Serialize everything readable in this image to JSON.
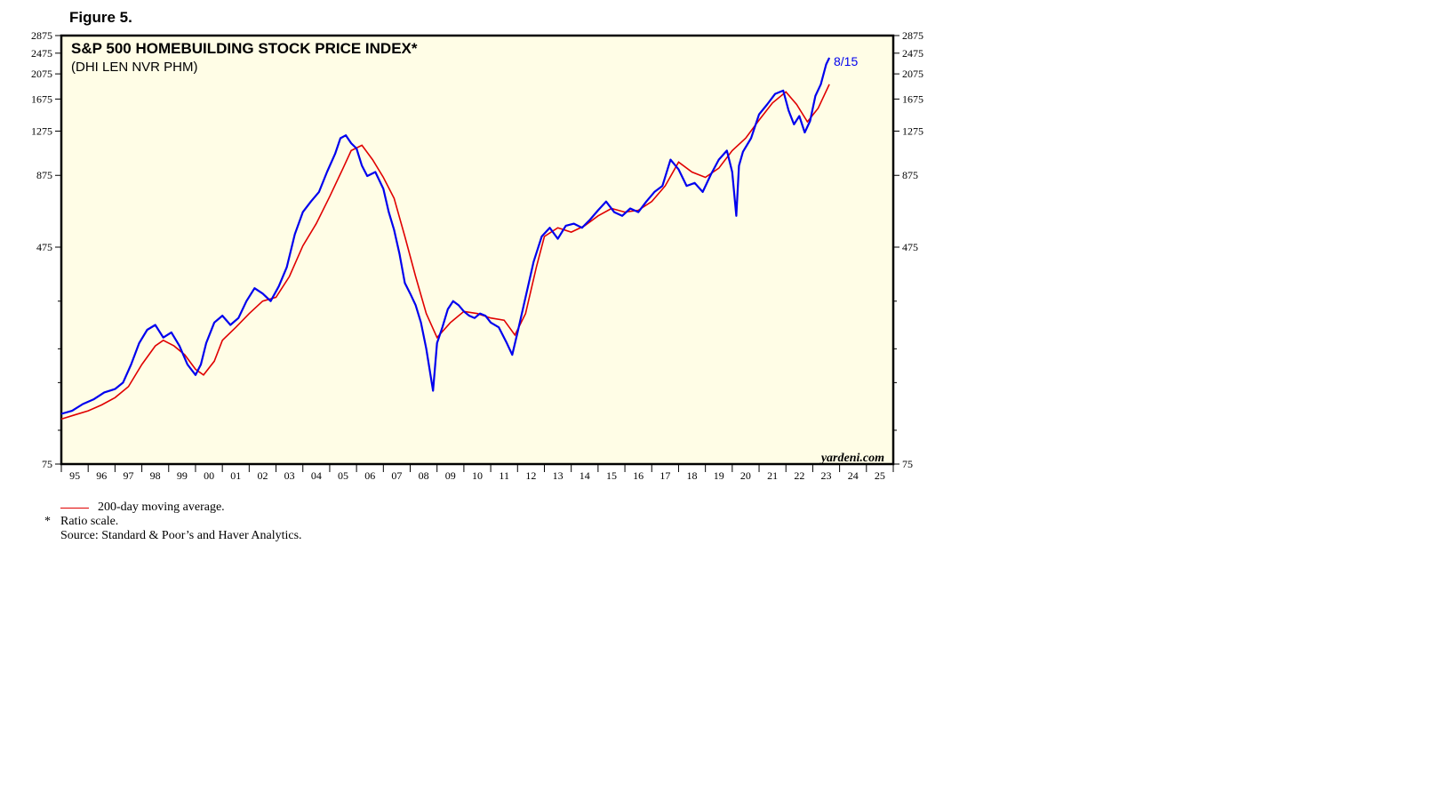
{
  "figure": {
    "label": "Figure 5."
  },
  "colors": {
    "price": "#0000ee",
    "ma": "#e00000",
    "plot_bg": "#fffde6",
    "frame": "#000000"
  },
  "notes": {
    "ma_legend": "200-day moving average.",
    "ratio_mark": "*",
    "ratio": "Ratio scale.",
    "source": "Source: Standard & Poor’s and Haver Analytics."
  },
  "chart_data": {
    "type": "line",
    "title": "S&P 500 HOMEBUILDING STOCK PRICE INDEX*",
    "subtitle": "(DHI LEN NVR PHM)",
    "credit": "yardeni.com",
    "end_label": "8/15",
    "y_scale": "log",
    "ylim": [
      75,
      2875
    ],
    "y_ticks": [
      75,
      475,
      875,
      1275,
      1675,
      2075,
      2475,
      2875
    ],
    "xlim": [
      1995,
      2026
    ],
    "x_tick_labels": [
      "95",
      "96",
      "97",
      "98",
      "99",
      "00",
      "01",
      "02",
      "03",
      "04",
      "05",
      "06",
      "07",
      "08",
      "09",
      "10",
      "11",
      "12",
      "13",
      "14",
      "15",
      "16",
      "17",
      "18",
      "19",
      "20",
      "21",
      "22",
      "23",
      "24",
      "25"
    ],
    "grid": false,
    "series": [
      {
        "name": "",
        "role": "price",
        "x": [
          1995.0,
          1995.4,
          1995.8,
          1996.2,
          1996.6,
          1997.0,
          1997.3,
          1997.6,
          1997.9,
          1998.2,
          1998.5,
          1998.8,
          1999.1,
          1999.4,
          1999.7,
          2000.0,
          2000.2,
          2000.4,
          2000.7,
          2001.0,
          2001.3,
          2001.6,
          2001.9,
          2002.2,
          2002.5,
          2002.8,
          2003.1,
          2003.4,
          2003.7,
          2004.0,
          2004.3,
          2004.6,
          2004.9,
          2005.2,
          2005.4,
          2005.6,
          2005.8,
          2006.0,
          2006.2,
          2006.4,
          2006.7,
          2007.0,
          2007.2,
          2007.4,
          2007.6,
          2007.8,
          2008.0,
          2008.2,
          2008.4,
          2008.6,
          2008.85,
          2009.0,
          2009.2,
          2009.4,
          2009.6,
          2009.8,
          2010.0,
          2010.2,
          2010.4,
          2010.6,
          2010.8,
          2011.0,
          2011.3,
          2011.6,
          2011.8,
          2012.0,
          2012.3,
          2012.6,
          2012.9,
          2013.2,
          2013.5,
          2013.8,
          2014.1,
          2014.4,
          2014.7,
          2015.0,
          2015.3,
          2015.6,
          2015.9,
          2016.2,
          2016.5,
          2016.8,
          2017.1,
          2017.4,
          2017.7,
          2018.0,
          2018.3,
          2018.6,
          2018.9,
          2019.2,
          2019.5,
          2019.8,
          2020.0,
          2020.15,
          2020.25,
          2020.4,
          2020.7,
          2021.0,
          2021.3,
          2021.6,
          2021.9,
          2022.1,
          2022.3,
          2022.5,
          2022.7,
          2022.9,
          2023.1,
          2023.3,
          2023.5,
          2023.62
        ],
        "values": [
          115,
          118,
          125,
          130,
          138,
          142,
          150,
          175,
          210,
          235,
          245,
          220,
          230,
          205,
          175,
          160,
          175,
          210,
          250,
          265,
          245,
          260,
          300,
          335,
          320,
          300,
          340,
          400,
          530,
          640,
          700,
          760,
          900,
          1050,
          1200,
          1230,
          1150,
          1100,
          950,
          870,
          900,
          780,
          640,
          550,
          450,
          350,
          320,
          290,
          250,
          200,
          140,
          210,
          240,
          280,
          300,
          290,
          275,
          265,
          260,
          270,
          265,
          250,
          240,
          210,
          190,
          230,
          310,
          420,
          520,
          560,
          510,
          570,
          580,
          560,
          600,
          650,
          700,
          640,
          620,
          660,
          640,
          700,
          760,
          800,
          1000,
          920,
          800,
          820,
          760,
          880,
          1000,
          1080,
          900,
          620,
          950,
          1070,
          1200,
          1470,
          1600,
          1750,
          1800,
          1520,
          1350,
          1450,
          1260,
          1390,
          1720,
          1900,
          2250,
          2380
        ]
      },
      {
        "name": "",
        "role": "200-day moving average",
        "x": [
          1995.0,
          1995.5,
          1996.0,
          1996.5,
          1997.0,
          1997.5,
          1998.0,
          1998.5,
          1998.8,
          1999.2,
          1999.6,
          2000.0,
          2000.3,
          2000.7,
          2001.0,
          2001.5,
          2002.0,
          2002.5,
          2003.0,
          2003.5,
          2004.0,
          2004.5,
          2005.0,
          2005.5,
          2005.8,
          2006.2,
          2006.6,
          2007.0,
          2007.4,
          2007.8,
          2008.2,
          2008.6,
          2009.0,
          2009.5,
          2010.0,
          2010.5,
          2011.0,
          2011.5,
          2011.9,
          2012.3,
          2012.7,
          2013.0,
          2013.5,
          2014.0,
          2014.5,
          2015.0,
          2015.5,
          2016.0,
          2016.5,
          2017.0,
          2017.5,
          2018.0,
          2018.5,
          2019.0,
          2019.5,
          2020.0,
          2020.5,
          2021.0,
          2021.5,
          2022.0,
          2022.4,
          2022.8,
          2023.2,
          2023.62
        ],
        "values": [
          110,
          114,
          118,
          124,
          132,
          145,
          175,
          205,
          215,
          205,
          190,
          168,
          160,
          180,
          215,
          240,
          270,
          300,
          310,
          370,
          480,
          580,
          730,
          930,
          1080,
          1130,
          1000,
          860,
          720,
          520,
          370,
          270,
          220,
          250,
          275,
          270,
          260,
          255,
          225,
          270,
          400,
          520,
          560,
          540,
          570,
          620,
          660,
          640,
          650,
          700,
          800,
          980,
          900,
          860,
          930,
          1080,
          1200,
          1400,
          1620,
          1780,
          1600,
          1380,
          1550,
          1900
        ]
      }
    ]
  }
}
